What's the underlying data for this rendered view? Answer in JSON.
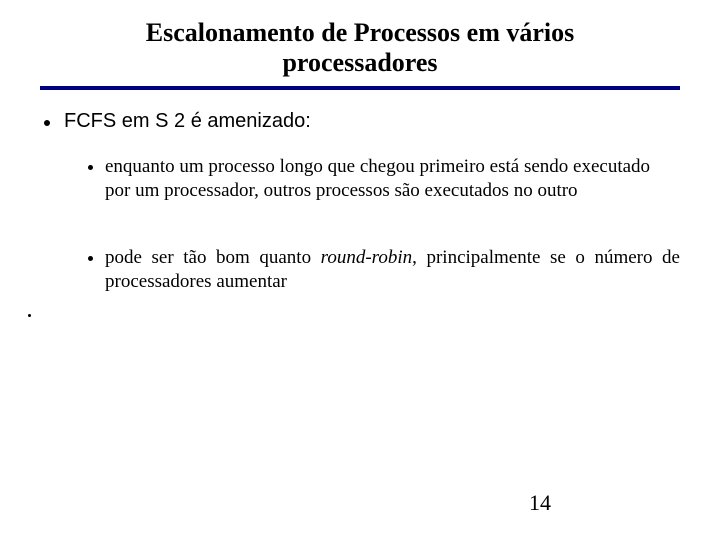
{
  "title_line1": "Escalonamento de Processos em vários",
  "title_line2": "processadores",
  "bullet_main": "FCFS em S 2 é amenizado:",
  "sub_bullet_1": "enquanto um processo longo que chegou primeiro está sendo executado por um processador, outros processos são executados no outro",
  "sub_bullet_2_a": "pode ser tão bom quanto ",
  "sub_bullet_2_em": "round-robin",
  "sub_bullet_2_b": ", principalmente se o número de processadores aumentar",
  "page_number": "14",
  "colors": {
    "rule": "#000080",
    "text": "#000000",
    "background": "#ffffff"
  }
}
